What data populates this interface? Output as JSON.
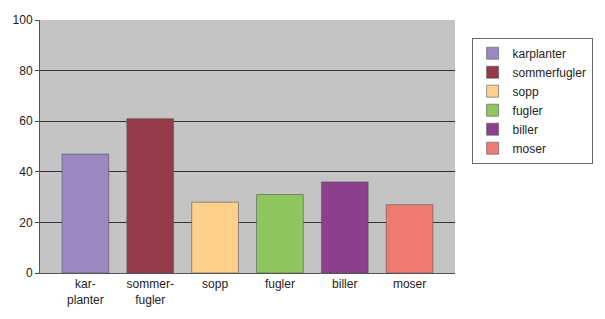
{
  "chart_data": {
    "type": "bar",
    "categories": [
      "kar-\nplanter",
      "sommer-\nfugler",
      "sopp",
      "fugler",
      "biller",
      "moser"
    ],
    "series": [
      {
        "name": "karplanter",
        "color": "#9a88c2",
        "values": [
          47,
          null,
          null,
          null,
          null,
          null
        ]
      },
      {
        "name": "sommerfugler",
        "color": "#953a48",
        "values": [
          null,
          61,
          null,
          null,
          null,
          null
        ]
      },
      {
        "name": "sopp",
        "color": "#fdd18a",
        "values": [
          null,
          null,
          28,
          null,
          null,
          null
        ]
      },
      {
        "name": "fugler",
        "color": "#90c65e",
        "values": [
          null,
          null,
          null,
          31,
          null,
          null
        ]
      },
      {
        "name": "biller",
        "color": "#8c3f8c",
        "values": [
          null,
          null,
          null,
          null,
          36,
          null
        ]
      },
      {
        "name": "moser",
        "color": "#ef7a72",
        "values": [
          null,
          null,
          null,
          null,
          null,
          27
        ]
      }
    ],
    "ylim": [
      0,
      100
    ],
    "yticks": [
      0,
      20,
      40,
      60,
      80,
      100
    ],
    "grid": true,
    "legend": "right"
  }
}
